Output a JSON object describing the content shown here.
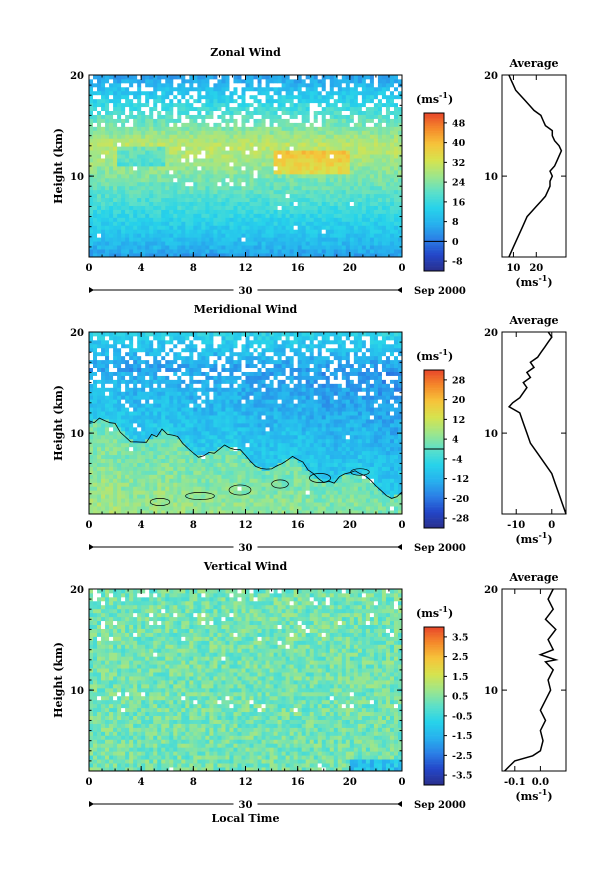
{
  "chart_data": [
    {
      "type": "heatmap",
      "id": "zonal",
      "title": "Zonal Wind",
      "ylabel": "Height (km)",
      "xlabel": "",
      "x_ticks": [
        "0",
        "4",
        "8",
        "12",
        "16",
        "20",
        "0"
      ],
      "xlim": [
        0,
        24
      ],
      "ylim": [
        2,
        20
      ],
      "y_ticks": [
        "20",
        "10"
      ],
      "date_day": "30",
      "date_month": "Sep 2000",
      "unit_label": "(ms",
      "unit_exp": "-1",
      "unit_close": ")",
      "colorbar_ticks": [
        "48",
        "40",
        "32",
        "24",
        "16",
        "8",
        "0",
        "-8"
      ],
      "colorbar_range": [
        -12,
        52
      ],
      "zero_line": 0,
      "average": {
        "title": "Average",
        "xlim": [
          5,
          33
        ],
        "x_ticks": [
          "10",
          "20"
        ],
        "x_tick_values": [
          10,
          20
        ],
        "y_ticks": [
          "20",
          "10"
        ],
        "xlabel_text": "(ms",
        "xlabel_exp": "-1",
        "xlabel_close": ")",
        "profile": [
          [
            8,
            2
          ],
          [
            10,
            3
          ],
          [
            12,
            4
          ],
          [
            14,
            5
          ],
          [
            16,
            6
          ],
          [
            18,
            6.5
          ],
          [
            20,
            7
          ],
          [
            22,
            7.5
          ],
          [
            24,
            8
          ],
          [
            25,
            8.5
          ],
          [
            26,
            9
          ],
          [
            26,
            9.5
          ],
          [
            27,
            10
          ],
          [
            26,
            10.5
          ],
          [
            28,
            11
          ],
          [
            29,
            11.5
          ],
          [
            30,
            12
          ],
          [
            31,
            12.5
          ],
          [
            30,
            13
          ],
          [
            28,
            13.5
          ],
          [
            27,
            14
          ],
          [
            27,
            14.5
          ],
          [
            24,
            15
          ],
          [
            23,
            15.5
          ],
          [
            22,
            16
          ],
          [
            19,
            16.5
          ],
          [
            17,
            17
          ],
          [
            15,
            17.5
          ],
          [
            13,
            18
          ],
          [
            11,
            18.5
          ],
          [
            10,
            19
          ],
          [
            9,
            19.5
          ],
          [
            8,
            20
          ]
        ]
      }
    },
    {
      "type": "heatmap",
      "id": "meridional",
      "title": "Meridional Wind",
      "ylabel": "Height (km)",
      "xlabel": "",
      "x_ticks": [
        "0",
        "4",
        "8",
        "12",
        "16",
        "20",
        "0"
      ],
      "xlim": [
        0,
        24
      ],
      "ylim": [
        2,
        20
      ],
      "y_ticks": [
        "20",
        "10"
      ],
      "date_day": "30",
      "date_month": "Sep 2000",
      "unit_label": "(ms",
      "unit_exp": "-1",
      "unit_close": ")",
      "colorbar_ticks": [
        "28",
        "20",
        "12",
        "4",
        "-4",
        "-12",
        "-20",
        "-28"
      ],
      "colorbar_range": [
        -32,
        32
      ],
      "zero_line": 0,
      "average": {
        "title": "Average",
        "xlim": [
          -14,
          4
        ],
        "x_ticks": [
          "-10",
          "0"
        ],
        "x_tick_values": [
          -10,
          0
        ],
        "y_ticks": [
          "20",
          "10"
        ],
        "xlabel_text": "(ms",
        "xlabel_exp": "-1",
        "xlabel_close": ")",
        "profile": [
          [
            4,
            2
          ],
          [
            3,
            3
          ],
          [
            2,
            4
          ],
          [
            1,
            5
          ],
          [
            0,
            6
          ],
          [
            -2,
            7
          ],
          [
            -4,
            8
          ],
          [
            -6,
            9
          ],
          [
            -7,
            10
          ],
          [
            -8,
            11
          ],
          [
            -9,
            12
          ],
          [
            -12,
            12.6
          ],
          [
            -11,
            13
          ],
          [
            -9,
            13.5
          ],
          [
            -8,
            14
          ],
          [
            -7,
            14.5
          ],
          [
            -8,
            15
          ],
          [
            -6,
            15.5
          ],
          [
            -7,
            16
          ],
          [
            -5,
            16.5
          ],
          [
            -6,
            17
          ],
          [
            -4,
            17.5
          ],
          [
            -3,
            18
          ],
          [
            -2,
            18.5
          ],
          [
            -1,
            19
          ],
          [
            0,
            19.5
          ],
          [
            -1,
            20
          ]
        ]
      }
    },
    {
      "type": "heatmap",
      "id": "vertical",
      "title": "Vertical Wind",
      "ylabel": "Height (km)",
      "xlabel": "Local Time",
      "x_ticks": [
        "0",
        "4",
        "8",
        "12",
        "16",
        "20",
        "0"
      ],
      "xlim": [
        0,
        24
      ],
      "ylim": [
        2,
        20
      ],
      "y_ticks": [
        "20",
        "10"
      ],
      "date_day": "30",
      "date_month": "Sep 2000",
      "unit_label": "(ms",
      "unit_exp": "-1",
      "unit_close": ")",
      "colorbar_ticks": [
        "3.5",
        "2.5",
        "1.5",
        "0.5",
        "-0.5",
        "-1.5",
        "-2.5",
        "-3.5"
      ],
      "colorbar_range": [
        -4,
        4
      ],
      "zero_line": null,
      "average": {
        "title": "Average",
        "xlim": [
          -0.15,
          0.1
        ],
        "x_ticks": [
          "-0.1",
          "0.0"
        ],
        "x_tick_values": [
          -0.1,
          0.0
        ],
        "y_ticks": [
          "20",
          "10"
        ],
        "xlabel_text": "(ms",
        "xlabel_exp": "-1",
        "xlabel_close": ")",
        "profile": [
          [
            -0.14,
            2
          ],
          [
            -0.12,
            2.5
          ],
          [
            -0.1,
            3
          ],
          [
            -0.03,
            3.5
          ],
          [
            0.0,
            4
          ],
          [
            0.01,
            5
          ],
          [
            0.0,
            6
          ],
          [
            0.02,
            7
          ],
          [
            0.0,
            8
          ],
          [
            0.02,
            9
          ],
          [
            0.04,
            10
          ],
          [
            0.03,
            11
          ],
          [
            0.05,
            12
          ],
          [
            0.02,
            12.8
          ],
          [
            0.06,
            13
          ],
          [
            0.0,
            13.5
          ],
          [
            0.05,
            14
          ],
          [
            0.03,
            15
          ],
          [
            0.06,
            16
          ],
          [
            0.02,
            17
          ],
          [
            0.05,
            18
          ],
          [
            0.03,
            19
          ],
          [
            0.05,
            20
          ]
        ]
      }
    }
  ]
}
